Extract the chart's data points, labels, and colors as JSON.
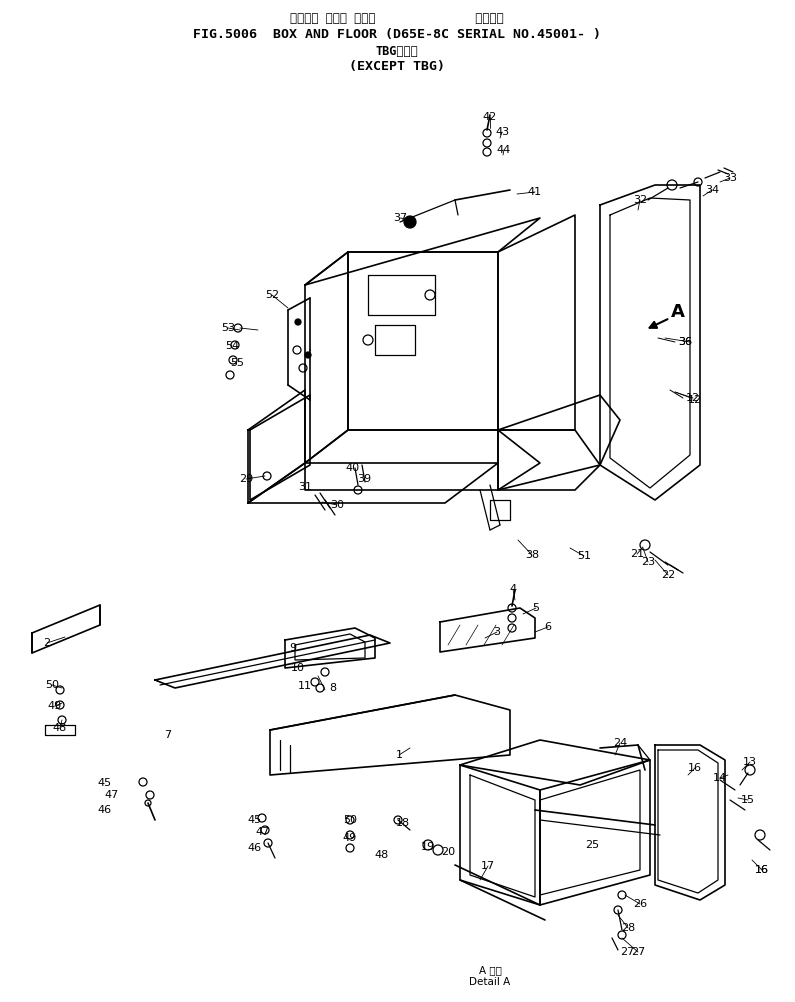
{
  "title_line1": "ボックス および フロア              適用号機",
  "title_line2": "FIG.5006  BOX AND FLOOR (D65E-8C SERIAL NO.45001- )",
  "title_line3": "TBGを除く",
  "title_line4": "(EXCEPT TBG)",
  "detail_label": "A 詳細\nDetail A",
  "bg_color": "#ffffff",
  "line_color": "#000000",
  "fig_width": 7.95,
  "fig_height": 10.02
}
